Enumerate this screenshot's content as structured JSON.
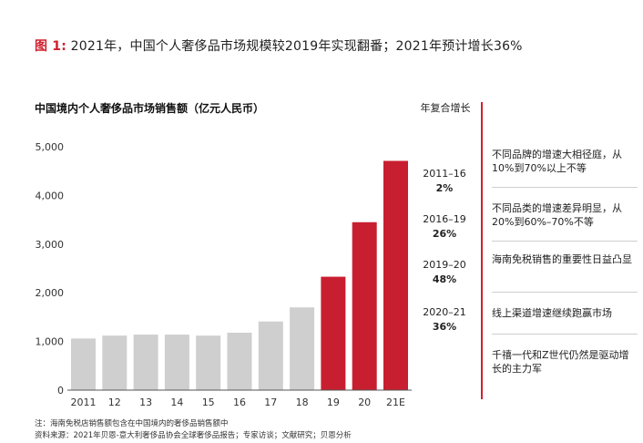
{
  "figure": {
    "label": "图 1:",
    "title": "2021年，中国个人奢侈品市场规模较2019年实现翻番；2021年预计增长36%"
  },
  "chart_data": {
    "type": "bar",
    "title": "中国境内个人奢侈品市场销售额（亿元人民币）",
    "categories": [
      "2011",
      "12",
      "13",
      "14",
      "15",
      "16",
      "17",
      "18",
      "19",
      "20",
      "21E"
    ],
    "values": [
      1060,
      1120,
      1140,
      1140,
      1120,
      1180,
      1410,
      1700,
      2330,
      3450,
      4710
    ],
    "bar_colors": [
      "#cfcfcf",
      "#cfcfcf",
      "#cfcfcf",
      "#cfcfcf",
      "#cfcfcf",
      "#cfcfcf",
      "#cfcfcf",
      "#cfcfcf",
      "#c81f30",
      "#c81f30",
      "#c81f30"
    ],
    "y_ticks": [
      "0",
      "1,000",
      "2,000",
      "3,000",
      "4,000",
      "5,000"
    ],
    "ylim": [
      0,
      5000
    ],
    "grid": false,
    "legend": "none"
  },
  "cagr": {
    "header": "年复合增长",
    "items": [
      {
        "period": "2011–16",
        "value": "2%"
      },
      {
        "period": "2016–19",
        "value": "26%"
      },
      {
        "period": "2019–20",
        "value": "48%"
      },
      {
        "period": "2020–21",
        "value": "36%"
      }
    ]
  },
  "notes": [
    "不同品牌的增速大相径庭，从10%到70%以上不等",
    "不同品类的增速差异明显，从20%到60%–70%不等",
    "海南免税销售的重要性日益凸显",
    "线上渠道增速继续跑赢市场",
    "千禧一代和Z世代仍然是驱动增长的主力军"
  ],
  "footer": {
    "note": "注：海南免税店销售额包含在中国境内的奢侈品销售额中",
    "source": "资料来源：2021年贝恩-意大利奢侈品协会全球奢侈品报告；专家访谈；文献研究；贝恩分析"
  }
}
